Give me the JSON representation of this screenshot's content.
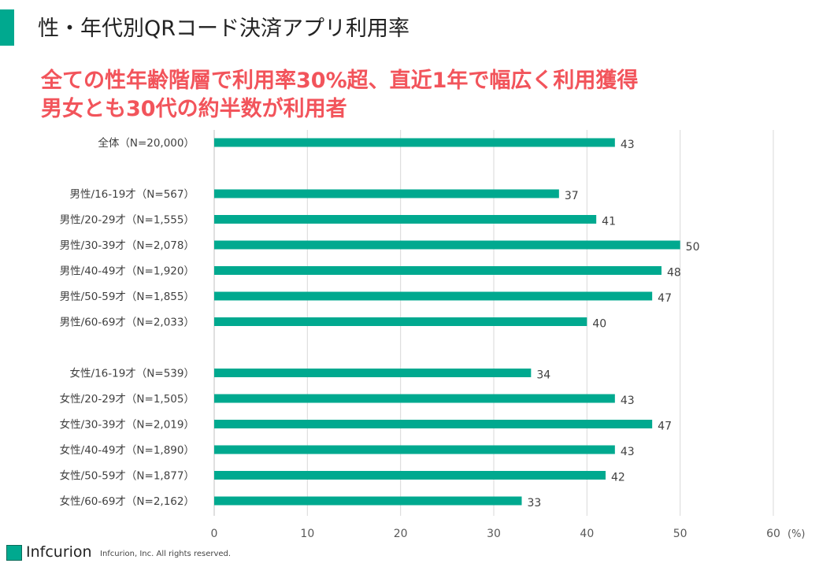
{
  "header": {
    "title": "性・年代別QRコード決済アプリ利用率"
  },
  "headline": {
    "line1": "全ての性年齢階層で利用率30%超、直近1年で幅広く利用獲得",
    "line2": "男女とも30代の約半数が利用者"
  },
  "footer": {
    "brand": "Infcurion",
    "copyright": "Infcurion, Inc.  All rights reserved."
  },
  "colors": {
    "bar": "#00a98f",
    "headline": "#f2545b",
    "grid": "#d9d9d9"
  },
  "chart_data": {
    "type": "bar",
    "orientation": "horizontal",
    "groups": [
      {
        "categories": [
          "全体（N=20,000）"
        ],
        "values": [
          43
        ]
      },
      {
        "categories": [
          "男性/16-19才（N=567）",
          "男性/20-29才（N=1,555）",
          "男性/30-39才（N=2,078）",
          "男性/40-49才（N=1,920）",
          "男性/50-59才（N=1,855）",
          "男性/60-69才（N=2,033）"
        ],
        "values": [
          37,
          41,
          50,
          48,
          47,
          40
        ]
      },
      {
        "categories": [
          "女性/16-19才（N=539）",
          "女性/20-29才（N=1,505）",
          "女性/30-39才（N=2,019）",
          "女性/40-49才（N=1,890）",
          "女性/50-59才（N=1,877）",
          "女性/60-69才（N=2,162）"
        ],
        "values": [
          34,
          43,
          47,
          43,
          42,
          33
        ]
      }
    ],
    "xlim": [
      0,
      60
    ],
    "xticks": [
      0,
      10,
      20,
      30,
      40,
      50,
      60
    ],
    "xunit": "(%)",
    "grid": true
  }
}
